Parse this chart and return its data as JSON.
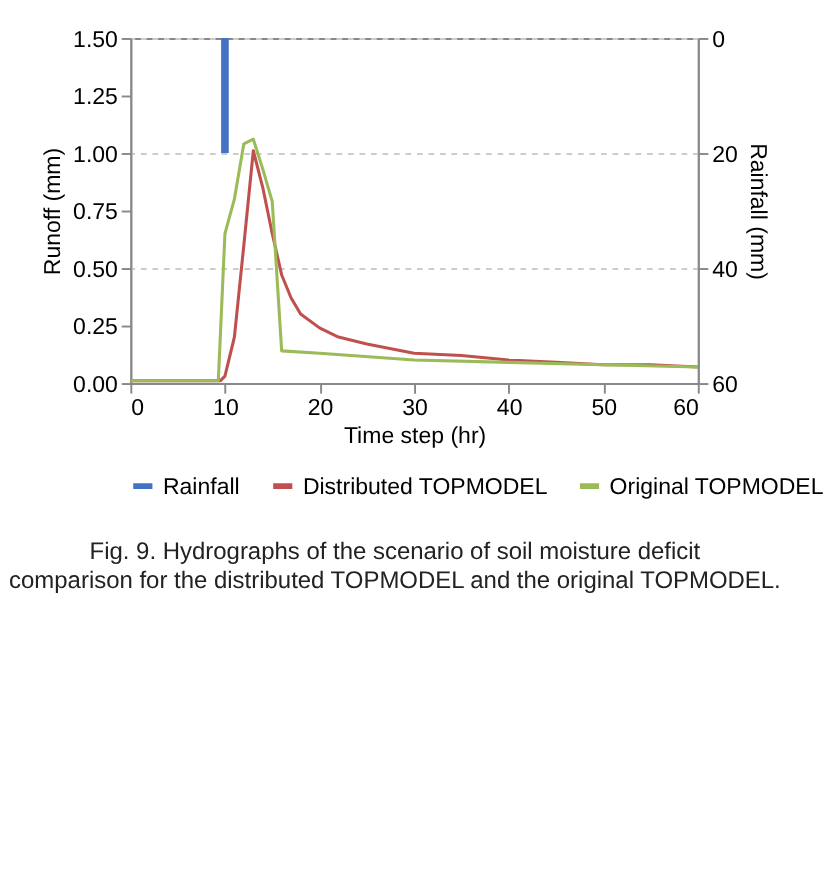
{
  "chart_data": {
    "type": "line",
    "xlabel": "Time step (hr)",
    "ylabel": "Runoff (mm)",
    "y2label": "Rainfall (mm)",
    "xlim": [
      0,
      60
    ],
    "xticks": [
      0,
      10,
      20,
      30,
      40,
      50,
      60
    ],
    "ylim": [
      0,
      1.5
    ],
    "yticks": [
      {
        "value": 0,
        "label": "0.00"
      },
      0.25,
      {
        "value": 0.5,
        "label": "0.50"
      },
      0.75,
      {
        "value": 1,
        "label": "1.00"
      },
      1.25,
      {
        "value": 1.5,
        "label": "1.50"
      }
    ],
    "y2lim": [
      60,
      0
    ],
    "y2ticks": [
      0,
      20,
      40,
      60
    ],
    "grid": "y",
    "legend": "bottom",
    "series": [
      {
        "name": "Rainfall",
        "type": "bar",
        "axis": "y2",
        "color": "#4472c4",
        "x": [
          10
        ],
        "values": [
          20
        ]
      },
      {
        "name": "Distributed TOPMODEL",
        "color": "#c0504d",
        "x": [
          0,
          5,
          9.5,
          10,
          11,
          12,
          13,
          14,
          15,
          16,
          17,
          18,
          20,
          22,
          25,
          30,
          35,
          40,
          45,
          50,
          55,
          60
        ],
        "values": [
          0.01,
          0.01,
          0.01,
          0.03,
          0.2,
          0.6,
          1.01,
          0.85,
          0.65,
          0.47,
          0.37,
          0.3,
          0.24,
          0.2,
          0.17,
          0.13,
          0.12,
          0.1,
          0.09,
          0.08,
          0.08,
          0.07
        ]
      },
      {
        "name": "Original TOPMODEL",
        "color": "#9bbb59",
        "x": [
          0,
          5,
          9.3,
          10,
          11,
          12,
          13,
          14,
          15,
          16,
          20,
          30,
          40,
          50,
          60
        ],
        "values": [
          0.01,
          0.01,
          0.01,
          0.65,
          0.8,
          1.04,
          1.06,
          0.93,
          0.79,
          0.14,
          0.13,
          0.1,
          0.09,
          0.08,
          0.07
        ]
      }
    ],
    "annotations": [
      "Fig. 9. Hydrographs of the scenario of soil moisture deficit comparison for the distributed TOPMODEL and the original TOPMODEL."
    ]
  }
}
